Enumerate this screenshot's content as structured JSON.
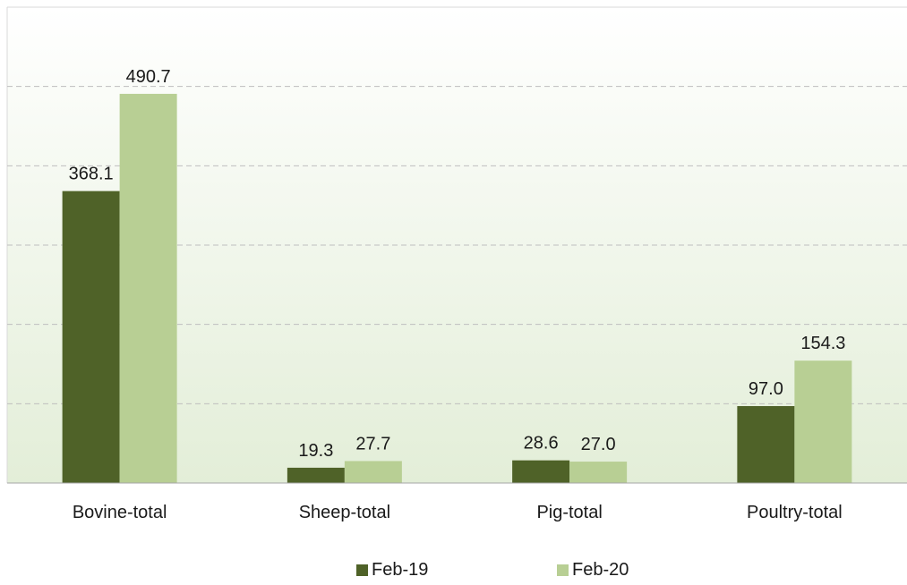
{
  "chart_data": {
    "type": "bar",
    "title": "",
    "xlabel": "",
    "ylabel": "",
    "categories": [
      "Bovine-total",
      "Sheep-total",
      "Pig-total",
      "Poultry-total"
    ],
    "series": [
      {
        "name": "Feb-19",
        "values": [
          368.1,
          19.3,
          28.6,
          97.0
        ],
        "labels": [
          "368.1",
          "19.3",
          "28.6",
          "97.0"
        ],
        "color": "#4f6228"
      },
      {
        "name": "Feb-20",
        "values": [
          490.7,
          27.7,
          27.0,
          154.3
        ],
        "labels": [
          "490.7",
          "27.7",
          "27.0",
          "154.3"
        ],
        "color": "#b8cf94"
      }
    ],
    "ylim": [
      0,
      600
    ],
    "gridlines": [
      100,
      200,
      300,
      400,
      500
    ],
    "grid": true,
    "grid_style": "dashed",
    "legend": "bottom",
    "background": "gradient-white-to-light-green"
  }
}
